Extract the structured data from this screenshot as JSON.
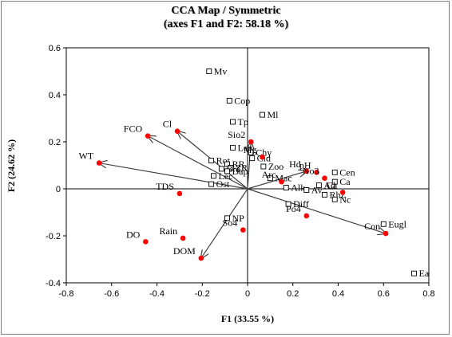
{
  "chart_data": {
    "type": "scatter",
    "title_lines": [
      "CCA Map / Symmetric",
      "(axes F1 and F2: 58.18 %)"
    ],
    "xlabel": "F1 (33.55 %)",
    "ylabel": "F2 (24.62 %)",
    "xlim": [
      -0.8,
      0.8
    ],
    "ylim": [
      -0.4,
      0.6
    ],
    "xticks": [
      -0.8,
      -0.6,
      -0.4,
      -0.2,
      0,
      0.2,
      0.4,
      0.6,
      0.8
    ],
    "yticks": [
      -0.4,
      -0.2,
      0,
      0.2,
      0.4,
      0.6
    ],
    "xtick_labels": [
      "-0.8",
      "-0.6",
      "-0.4",
      "-0.2",
      "0",
      "0.2",
      "0.4",
      "0.6",
      "0.8"
    ],
    "ytick_labels": [
      "-0.4",
      "-0.2",
      "0",
      "0.2",
      "0.4",
      "0.6"
    ],
    "grid": false,
    "colors": {
      "variable": "#ff0000",
      "species": "#ffffff",
      "axis": "#000000",
      "arrow": "#404040"
    },
    "variables": [
      {
        "label": "WT",
        "x": -0.655,
        "y": 0.11
      },
      {
        "label": "FCO",
        "x": -0.44,
        "y": 0.225
      },
      {
        "label": "Cl",
        "x": -0.31,
        "y": 0.245
      },
      {
        "label": "TDS",
        "x": -0.3,
        "y": -0.02
      },
      {
        "label": "DO",
        "x": -0.45,
        "y": -0.225
      },
      {
        "label": "Rain",
        "x": -0.285,
        "y": -0.21
      },
      {
        "label": "DOM",
        "x": -0.205,
        "y": -0.295
      },
      {
        "label": "So4",
        "x": -0.02,
        "y": -0.175
      },
      {
        "label": "Sio2",
        "x": 0.015,
        "y": 0.2
      },
      {
        "label": "Hd",
        "x": 0.26,
        "y": 0.075
      },
      {
        "label": "pH",
        "x": 0.305,
        "y": 0.07
      },
      {
        "label": "No3",
        "x": 0.34,
        "y": 0.045
      },
      {
        "label": "Ca",
        "x": 0.42,
        "y": -0.015
      },
      {
        "label": "Po4",
        "x": 0.26,
        "y": -0.115
      },
      {
        "label": "Con",
        "x": 0.61,
        "y": -0.19
      },
      {
        "label": "Mg",
        "x": 0.065,
        "y": 0.135
      },
      {
        "label": "Arc",
        "x": 0.15,
        "y": 0.03
      }
    ],
    "arrows": [
      "WT",
      "FCO",
      "Cl",
      "DOM",
      "Sio2",
      "Hd",
      "Con"
    ],
    "species": [
      {
        "label": "Mv",
        "x": -0.17,
        "y": 0.5
      },
      {
        "label": "Ml",
        "x": 0.065,
        "y": 0.315
      },
      {
        "label": "Cop",
        "x": -0.08,
        "y": 0.375
      },
      {
        "label": "Tp",
        "x": -0.065,
        "y": 0.285
      },
      {
        "label": "Lep",
        "x": -0.065,
        "y": 0.175
      },
      {
        "label": "Chy",
        "x": 0.015,
        "y": 0.155
      },
      {
        "label": "Cid",
        "x": 0.02,
        "y": 0.13
      },
      {
        "label": "Rot",
        "x": -0.16,
        "y": 0.12
      },
      {
        "label": "RR",
        "x": -0.09,
        "y": 0.105
      },
      {
        "label": "ZR",
        "x": -0.075,
        "y": 0.09
      },
      {
        "label": "Bra",
        "x": -0.115,
        "y": 0.085
      },
      {
        "label": "Dap",
        "x": -0.09,
        "y": 0.075
      },
      {
        "label": "Zoo",
        "x": 0.07,
        "y": 0.095
      },
      {
        "label": "Mac",
        "x": 0.1,
        "y": 0.045
      },
      {
        "label": "Lec",
        "x": -0.15,
        "y": 0.055
      },
      {
        "label": "Ost",
        "x": -0.16,
        "y": 0.02
      },
      {
        "label": "Cen",
        "x": 0.385,
        "y": 0.07
      },
      {
        "label": "Ca",
        "x": 0.385,
        "y": 0.03
      },
      {
        "label": "Ad",
        "x": 0.315,
        "y": 0.015
      },
      {
        "label": "Alk",
        "x": 0.17,
        "y": 0.005
      },
      {
        "label": "Av",
        "x": 0.26,
        "y": -0.005
      },
      {
        "label": "Rhz",
        "x": 0.34,
        "y": -0.025
      },
      {
        "label": "Nc",
        "x": 0.385,
        "y": -0.045
      },
      {
        "label": "Diff",
        "x": 0.18,
        "y": -0.065
      },
      {
        "label": "NP",
        "x": -0.09,
        "y": -0.125
      },
      {
        "label": "Eugl",
        "x": 0.6,
        "y": -0.15
      },
      {
        "label": "Ea",
        "x": 0.735,
        "y": -0.36
      }
    ]
  }
}
